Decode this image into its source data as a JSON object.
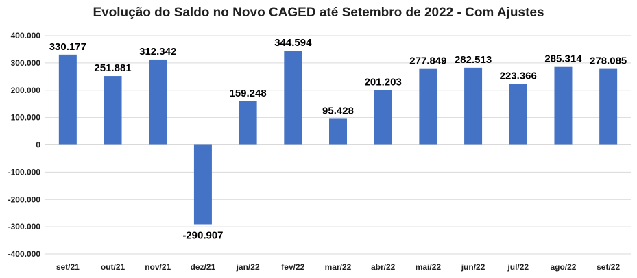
{
  "chart_data": {
    "type": "bar",
    "title": "Evolução do Saldo no Novo CAGED até Setembro de 2022 - Com Ajustes",
    "categories": [
      "set/21",
      "out/21",
      "nov/21",
      "dez/21",
      "jan/22",
      "fev/22",
      "mar/22",
      "abr/22",
      "mai/22",
      "jun/22",
      "jul/22",
      "ago/22",
      "set/22"
    ],
    "values": [
      330177,
      251881,
      312342,
      -290907,
      159248,
      344594,
      95428,
      201203,
      277849,
      282513,
      223366,
      285314,
      278085
    ],
    "data_labels": [
      "330.177",
      "251.881",
      "312.342",
      "-290.907",
      "159.248",
      "344.594",
      "95.428",
      "201.203",
      "277.849",
      "282.513",
      "223.366",
      "285.314",
      "278.085"
    ],
    "ylim": [
      -400000,
      400000
    ],
    "yticks": [
      400000,
      300000,
      200000,
      100000,
      0,
      -100000,
      -200000,
      -300000,
      -400000
    ],
    "ytick_labels": [
      "400.000",
      "300.000",
      "200.000",
      "100.000",
      "0",
      "-100.000",
      "-200.000",
      "-300.000",
      "-400.000"
    ],
    "grid": true,
    "colors": {
      "bar": "#4472C4",
      "grid": "#D9D9D9"
    }
  }
}
